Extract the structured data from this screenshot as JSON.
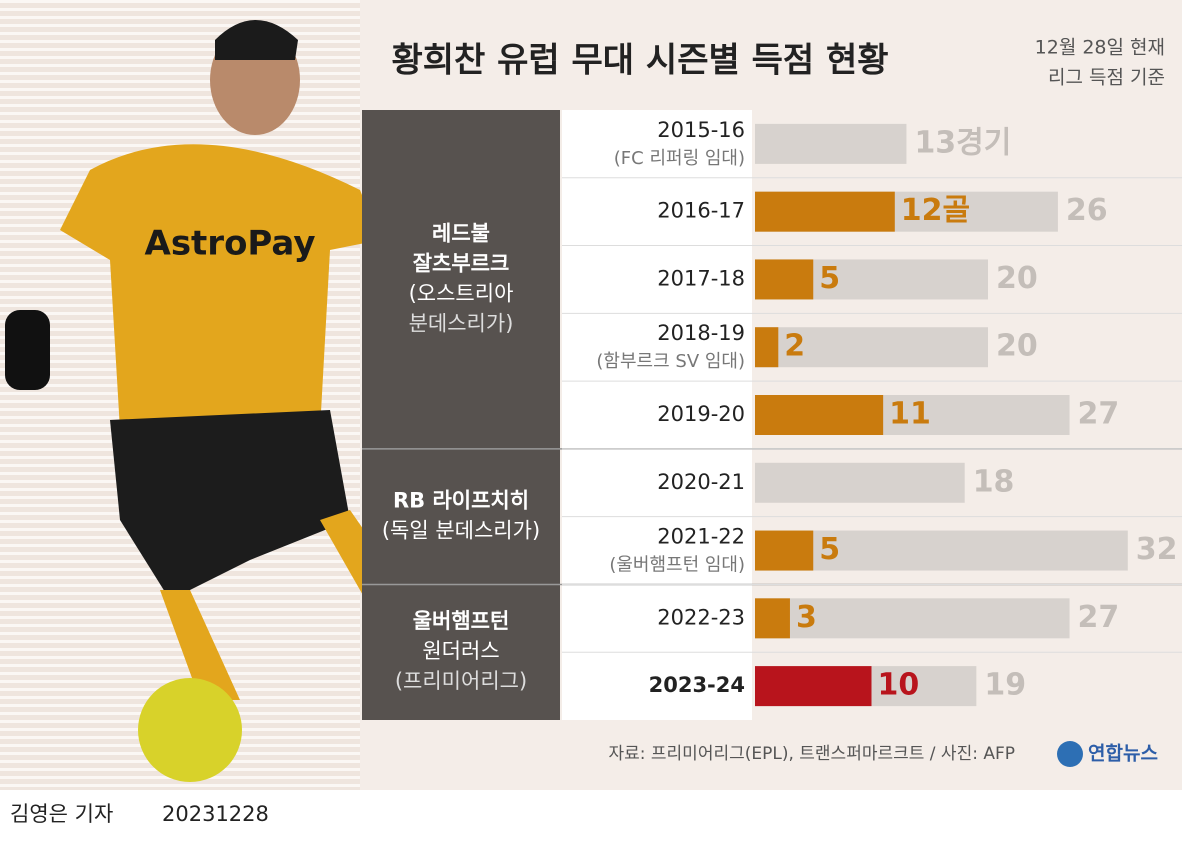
{
  "chart_data": {
    "type": "bar",
    "title": "황희찬 유럽 무대 시즌별 득점 현황",
    "note": [
      "12월 28일 현재",
      "리그 득점 기준"
    ],
    "clubs": [
      [
        "레드불",
        "잘츠부르크",
        "(오스트리아",
        "분데스리가)"
      ],
      [
        "RB 라이프치히",
        "(독일 분데스리가)"
      ],
      [
        "울버햄프턴",
        "원더러스",
        "(프리미어리그)"
      ]
    ],
    "categories": [
      "2015-16",
      "2016-17",
      "2017-18",
      "2018-19",
      "2019-20",
      "2020-21",
      "2021-22",
      "2022-23",
      "2023-24"
    ],
    "sublabels": [
      "(FC 리퍼링 임대)",
      null,
      null,
      "(함부르크 SV 임대)",
      null,
      null,
      "(울버햄프턴 임대)",
      null,
      null
    ],
    "series": [
      {
        "name": "경기",
        "color": "#d7d2ce",
        "label_color": "#c4beb9",
        "values": [
          13,
          26,
          20,
          20,
          27,
          18,
          32,
          27,
          19
        ],
        "value_labels": [
          "13경기",
          "26",
          "20",
          "20",
          "27",
          "18",
          "32",
          "27",
          "19"
        ]
      },
      {
        "name": "골",
        "color": "#c97b0e",
        "colors": [
          "#c97b0e",
          "#c97b0e",
          "#c97b0e",
          "#c97b0e",
          "#c97b0e",
          "#c97b0e",
          "#c97b0e",
          "#c97b0e",
          "#b8141c"
        ],
        "values": [
          null,
          12,
          5,
          2,
          11,
          null,
          5,
          3,
          10
        ],
        "value_labels": [
          null,
          "12골",
          "5",
          "2",
          "11",
          null,
          "5",
          "3",
          "10"
        ]
      }
    ],
    "source": "자료: 프리미어리그(EPL), 트랜스퍼마르크트 / 사진: AFP",
    "logo": "연합뉴스",
    "reporter": "김영은 기자",
    "date": "20231228"
  }
}
